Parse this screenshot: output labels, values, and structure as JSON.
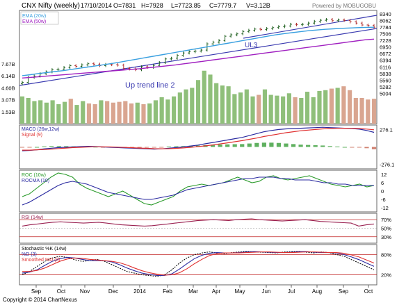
{
  "header": {
    "title": "CNX Nifty (weekly)",
    "date": "17/10/2014",
    "open": "O=7831",
    "high": "H=7928",
    "low": "L=7723.85",
    "close": "C=7779.7",
    "volume": "V=3.12B",
    "source": "Powered by MOBUGOBU"
  },
  "footer": {
    "copyright": "Copyright © 2014 ChartNexus"
  },
  "colors": {
    "up": "#1a5c1a",
    "down": "#b03030",
    "ema20": "#3aa0e0",
    "ema50": "#a020c0",
    "trend": "#3a3ab0",
    "vol_up": "#8fbf7a",
    "vol_down": "#d9a590",
    "macd": "#2a2aa0",
    "signal": "#e03030",
    "roc": "#2a9a2a",
    "rocma": "#2a2aa0",
    "rsi": "#9a2050",
    "stoch_k": "#000000",
    "stoch_d": "#2a2aa0",
    "stoch_sd": "#e03030"
  },
  "chart_data": [
    {
      "type": "candlestick",
      "panel": "price",
      "legend": [
        "EMA (20w)",
        "EMA (50w)"
      ],
      "annotations": [
        "Up trend line 2",
        "UL3"
      ],
      "ylabels": [
        "8340",
        "8062",
        "7784",
        "7506",
        "7228",
        "6950",
        "6672",
        "6394",
        "6116",
        "5838",
        "5560",
        "5282",
        "5004"
      ],
      "ylim": [
        4700,
        8480
      ],
      "x": [
        "Sep",
        "Oct",
        "Nov",
        "Dec",
        "2014",
        "Feb",
        "Mar",
        "Apr",
        "May",
        "Jun",
        "Jul",
        "Aug",
        "Sep",
        "Oct"
      ],
      "close_approx": [
        5470,
        5680,
        5735,
        5830,
        5910,
        6000,
        6020,
        6090,
        6170,
        6140,
        6200,
        6250,
        6230,
        6170,
        6220,
        6210,
        6190,
        6050,
        6030,
        6000,
        6120,
        6100,
        6180,
        6300,
        6450,
        6480,
        6600,
        6700,
        6750,
        6780,
        6820,
        7080,
        7150,
        7220,
        7400,
        7460,
        7500,
        7600,
        7650,
        7700,
        7680,
        7720,
        7760,
        7800,
        7830,
        7900,
        7880,
        7900,
        7950,
        8020,
        8070,
        8100,
        8050,
        8080,
        8060,
        8000,
        7950,
        7870,
        7850,
        7780
      ],
      "ema20_approx": [
        5750,
        5790,
        5840,
        5880,
        5920,
        5960,
        6010,
        6060,
        6110,
        6160,
        6210,
        6260,
        6320,
        6380,
        6440,
        6500,
        6560,
        6620,
        6680,
        6740,
        6800,
        6860,
        6920,
        6980,
        7040,
        7100,
        7160,
        7220,
        7280,
        7340,
        7400,
        7460,
        7510,
        7550,
        7590,
        7630,
        7660,
        7690,
        7710,
        7730,
        7745,
        7760,
        7770,
        7775
      ],
      "ema50_approx": [
        5650,
        5680,
        5710,
        5740,
        5770,
        5800,
        5830,
        5860,
        5890,
        5920,
        5950,
        5980,
        6010,
        6040,
        6080,
        6120,
        6160,
        6200,
        6250,
        6300,
        6350,
        6400,
        6450,
        6500,
        6550,
        6600,
        6650,
        6700,
        6750,
        6800,
        6850,
        6900,
        6950,
        7000,
        7050,
        7100,
        7150,
        7200,
        7250,
        7280
      ]
    },
    {
      "type": "bar",
      "panel": "volume",
      "ylabels": [
        "7.67B",
        "6.14B",
        "4.60B",
        "3.07B",
        "1.53B"
      ],
      "values_billions": [
        3.5,
        3.3,
        2.9,
        3.0,
        2.7,
        3.0,
        2.5,
        2.8,
        3.2,
        2.4,
        2.9,
        2.6,
        2.5,
        3.0,
        2.9,
        2.7,
        2.8,
        2.9,
        2.6,
        2.7,
        2.5,
        2.6,
        3.0,
        3.4,
        3.1,
        3.5,
        4.0,
        4.4,
        4.6,
        5.6,
        6.8,
        6.3,
        5.2,
        4.9,
        4.8,
        3.8,
        4.0,
        4.4,
        3.5,
        3.7,
        4.4,
        3.7,
        3.6,
        3.5,
        3.9,
        3.4,
        3.3,
        4.1,
        3.4,
        4.2,
        4.3,
        4.5,
        4.6,
        4.8,
        4.3,
        3.3,
        3.3,
        3.1,
        3.2
      ]
    },
    {
      "type": "line",
      "panel": "macd",
      "legend": [
        "MACD (26w,12w)",
        "Signal (9)"
      ],
      "ylabels": [
        "276.1",
        "-276.1"
      ],
      "ylim": [
        -345,
        345
      ],
      "macd": [
        -60,
        -55,
        -45,
        -30,
        -20,
        -10,
        -5,
        0,
        5,
        10,
        5,
        0,
        -5,
        -10,
        -15,
        -20,
        -25,
        -30,
        -35,
        -30,
        -20,
        -10,
        0,
        15,
        30,
        50,
        70,
        90,
        110,
        130,
        150,
        180,
        210,
        240,
        260,
        275,
        285,
        290,
        295,
        300,
        305,
        310,
        305,
        300,
        295,
        290,
        280,
        260,
        230
      ],
      "signal": [
        -50,
        -50,
        -45,
        -40,
        -35,
        -25,
        -18,
        -10,
        -5,
        0,
        2,
        2,
        0,
        -3,
        -8,
        -12,
        -17,
        -22,
        -27,
        -29,
        -27,
        -22,
        -15,
        -5,
        5,
        18,
        32,
        48,
        65,
        82,
        100,
        120,
        140,
        165,
        185,
        205,
        225,
        240,
        255,
        265,
        275,
        285,
        290,
        293,
        295,
        294,
        290,
        282,
        270
      ]
    },
    {
      "type": "line",
      "panel": "roc",
      "legend": [
        "ROC (10w)",
        "ROCMA (10)"
      ],
      "ylabels": [
        "12",
        "6",
        "0",
        "-6",
        "-12"
      ],
      "ylim": [
        -15,
        15
      ],
      "roc": [
        -4,
        -2,
        2,
        6,
        10,
        13,
        12,
        10,
        5,
        2,
        0,
        -2,
        -4,
        -2,
        0,
        -3,
        -6,
        -9,
        -10,
        -8,
        -6,
        -4,
        0,
        3,
        4,
        5,
        4,
        5,
        6,
        8,
        10,
        8,
        6,
        7,
        10,
        11,
        9,
        8,
        9,
        10,
        11,
        9,
        7,
        5,
        4,
        3,
        4,
        5,
        3,
        4
      ],
      "rocma": [
        -10,
        -8,
        -5,
        -2,
        1,
        4,
        6,
        7,
        6,
        5,
        3,
        1,
        -1,
        -2,
        -3,
        -4,
        -5,
        -6,
        -6,
        -5,
        -4,
        -3,
        -1,
        1,
        2,
        3,
        4,
        5,
        6,
        7,
        8,
        9,
        9,
        10,
        10,
        10,
        9,
        9,
        8,
        8,
        8,
        7,
        6,
        6,
        5,
        5,
        4,
        4,
        4,
        4
      ]
    },
    {
      "type": "line",
      "panel": "rsi",
      "legend": [
        "RSI (14w)"
      ],
      "ylabels": [
        "70%",
        "50%",
        "30%"
      ],
      "ylim": [
        15,
        85
      ],
      "rsi": [
        55,
        58,
        60,
        62,
        64,
        65,
        64,
        63,
        62,
        63,
        64,
        62,
        60,
        58,
        57,
        56,
        55,
        56,
        58,
        60,
        62,
        64,
        66,
        68,
        69,
        70,
        69,
        68,
        70,
        71,
        72,
        70,
        69,
        68,
        67,
        68,
        69,
        70,
        68,
        66,
        65,
        64,
        63,
        62,
        55,
        58,
        60
      ]
    },
    {
      "type": "line",
      "panel": "stochastic",
      "legend": [
        "Stochastic %K (14w)",
        "%D (3)",
        "Smoothed %D (3)"
      ],
      "ylabels": [
        "80%",
        "20%"
      ],
      "ylim": [
        -10,
        110
      ],
      "k": [
        20,
        30,
        45,
        60,
        70,
        75,
        72,
        65,
        60,
        62,
        66,
        60,
        50,
        40,
        30,
        25,
        20,
        18,
        15,
        20,
        35,
        55,
        70,
        80,
        85,
        88,
        85,
        83,
        86,
        88,
        90,
        88,
        87,
        86,
        85,
        88,
        89,
        90,
        87,
        85,
        88,
        86,
        80,
        75,
        65,
        55,
        45,
        35
      ],
      "d": [
        25,
        28,
        35,
        48,
        60,
        68,
        72,
        70,
        66,
        62,
        62,
        62,
        58,
        50,
        40,
        32,
        25,
        21,
        18,
        18,
        23,
        37,
        53,
        68,
        78,
        84,
        86,
        85,
        85,
        86,
        88,
        89,
        88,
        87,
        86,
        86,
        87,
        89,
        89,
        87,
        86,
        86,
        85,
        80,
        73,
        65,
        55,
        45
      ],
      "sd": [
        30,
        30,
        33,
        40,
        50,
        60,
        67,
        70,
        69,
        66,
        64,
        62,
        60,
        56,
        49,
        40,
        32,
        26,
        22,
        19,
        20,
        26,
        38,
        53,
        66,
        77,
        83,
        85,
        85,
        85,
        86,
        87,
        88,
        88,
        87,
        86,
        86,
        87,
        88,
        88,
        87,
        86,
        86,
        84,
        79,
        73,
        64,
        55
      ]
    }
  ]
}
